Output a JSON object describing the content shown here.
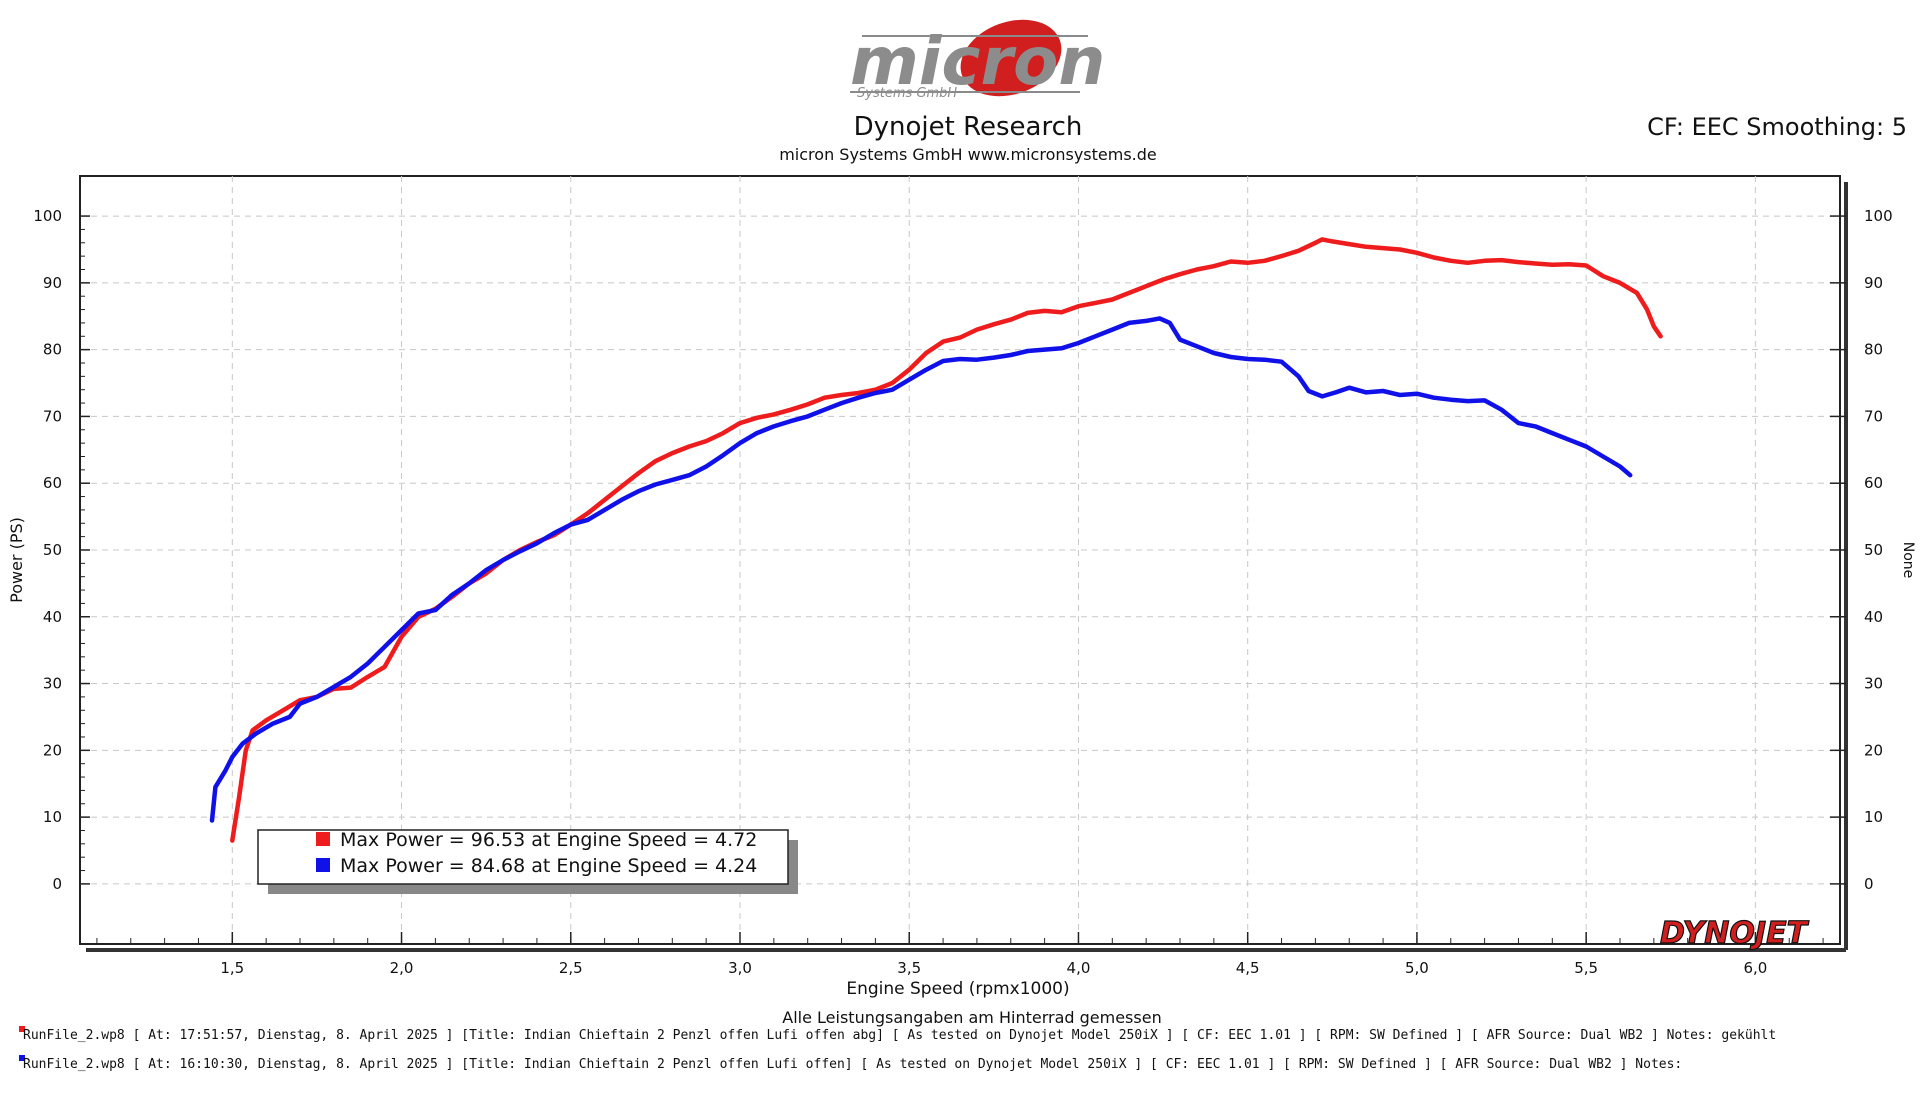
{
  "header": {
    "logo_text": "micron",
    "logo_sub": "Systems GmbH",
    "title": "Dynojet Research",
    "subtitle": "micron Systems GmbH  www.micronsystems.de",
    "cf_label": "CF: EEC Smoothing: 5",
    "brand": "DYNOJET"
  },
  "chart_data": {
    "type": "line",
    "xlabel": "Engine Speed (rpmx1000)",
    "ylabel": "Power (PS)",
    "y2label": "None",
    "xlim": [
      1.05,
      6.25
    ],
    "ylim": [
      -9,
      106
    ],
    "xticks": [
      "1,5",
      "2,0",
      "2,5",
      "3,0",
      "3,5",
      "4,0",
      "4,5",
      "5,0",
      "5,5",
      "6,0"
    ],
    "yticks": [
      "0",
      "10",
      "20",
      "30",
      "40",
      "50",
      "60",
      "70",
      "80",
      "90",
      "100"
    ],
    "grid": true,
    "series": [
      {
        "color": "#ee1c1c",
        "points": [
          [
            1.5,
            6.5
          ],
          [
            1.52,
            13
          ],
          [
            1.54,
            20
          ],
          [
            1.56,
            23
          ],
          [
            1.6,
            24.5
          ],
          [
            1.65,
            26
          ],
          [
            1.7,
            27.5
          ],
          [
            1.75,
            28
          ],
          [
            1.8,
            29.2
          ],
          [
            1.85,
            29.4
          ],
          [
            1.9,
            31
          ],
          [
            1.95,
            32.5
          ],
          [
            2.0,
            37
          ],
          [
            2.05,
            40
          ],
          [
            2.1,
            41.2
          ],
          [
            2.15,
            43
          ],
          [
            2.2,
            45
          ],
          [
            2.25,
            46.5
          ],
          [
            2.3,
            48.5
          ],
          [
            2.35,
            50
          ],
          [
            2.4,
            51.2
          ],
          [
            2.45,
            52.2
          ],
          [
            2.5,
            53.8
          ],
          [
            2.55,
            55.5
          ],
          [
            2.6,
            57.5
          ],
          [
            2.65,
            59.5
          ],
          [
            2.7,
            61.5
          ],
          [
            2.75,
            63.3
          ],
          [
            2.8,
            64.5
          ],
          [
            2.85,
            65.5
          ],
          [
            2.9,
            66.3
          ],
          [
            2.95,
            67.5
          ],
          [
            3.0,
            69
          ],
          [
            3.05,
            69.8
          ],
          [
            3.1,
            70.3
          ],
          [
            3.15,
            71
          ],
          [
            3.2,
            71.8
          ],
          [
            3.25,
            72.8
          ],
          [
            3.3,
            73.2
          ],
          [
            3.35,
            73.5
          ],
          [
            3.4,
            74
          ],
          [
            3.45,
            75
          ],
          [
            3.5,
            77
          ],
          [
            3.55,
            79.5
          ],
          [
            3.6,
            81.2
          ],
          [
            3.65,
            81.8
          ],
          [
            3.7,
            83
          ],
          [
            3.75,
            83.8
          ],
          [
            3.8,
            84.5
          ],
          [
            3.85,
            85.5
          ],
          [
            3.9,
            85.8
          ],
          [
            3.95,
            85.6
          ],
          [
            4.0,
            86.5
          ],
          [
            4.05,
            87
          ],
          [
            4.1,
            87.5
          ],
          [
            4.15,
            88.5
          ],
          [
            4.2,
            89.5
          ],
          [
            4.25,
            90.5
          ],
          [
            4.3,
            91.3
          ],
          [
            4.35,
            92
          ],
          [
            4.4,
            92.5
          ],
          [
            4.45,
            93.2
          ],
          [
            4.5,
            93
          ],
          [
            4.55,
            93.3
          ],
          [
            4.6,
            94
          ],
          [
            4.65,
            94.8
          ],
          [
            4.7,
            96
          ],
          [
            4.72,
            96.5
          ],
          [
            4.75,
            96.2
          ],
          [
            4.8,
            95.8
          ],
          [
            4.85,
            95.4
          ],
          [
            4.9,
            95.2
          ],
          [
            4.95,
            95
          ],
          [
            5.0,
            94.5
          ],
          [
            5.05,
            93.8
          ],
          [
            5.1,
            93.3
          ],
          [
            5.15,
            93
          ],
          [
            5.2,
            93.3
          ],
          [
            5.25,
            93.4
          ],
          [
            5.3,
            93.1
          ],
          [
            5.35,
            92.9
          ],
          [
            5.4,
            92.7
          ],
          [
            5.45,
            92.8
          ],
          [
            5.5,
            92.6
          ],
          [
            5.55,
            91
          ],
          [
            5.6,
            90
          ],
          [
            5.65,
            88.5
          ],
          [
            5.68,
            86
          ],
          [
            5.7,
            83.5
          ],
          [
            5.72,
            82
          ]
        ]
      },
      {
        "color": "#1010e8",
        "points": [
          [
            1.44,
            9.5
          ],
          [
            1.45,
            14.5
          ],
          [
            1.48,
            17
          ],
          [
            1.5,
            19
          ],
          [
            1.53,
            21
          ],
          [
            1.57,
            22.5
          ],
          [
            1.62,
            24
          ],
          [
            1.67,
            25
          ],
          [
            1.7,
            27
          ],
          [
            1.75,
            28
          ],
          [
            1.8,
            29.5
          ],
          [
            1.85,
            31
          ],
          [
            1.9,
            33
          ],
          [
            1.95,
            35.5
          ],
          [
            2.0,
            38
          ],
          [
            2.05,
            40.5
          ],
          [
            2.1,
            41
          ],
          [
            2.15,
            43.3
          ],
          [
            2.2,
            45
          ],
          [
            2.25,
            47
          ],
          [
            2.3,
            48.5
          ],
          [
            2.35,
            49.8
          ],
          [
            2.4,
            51
          ],
          [
            2.45,
            52.5
          ],
          [
            2.5,
            53.8
          ],
          [
            2.55,
            54.5
          ],
          [
            2.6,
            56
          ],
          [
            2.65,
            57.5
          ],
          [
            2.7,
            58.8
          ],
          [
            2.75,
            59.8
          ],
          [
            2.8,
            60.5
          ],
          [
            2.85,
            61.2
          ],
          [
            2.9,
            62.5
          ],
          [
            2.95,
            64.2
          ],
          [
            3.0,
            66
          ],
          [
            3.05,
            67.5
          ],
          [
            3.1,
            68.5
          ],
          [
            3.15,
            69.3
          ],
          [
            3.2,
            70
          ],
          [
            3.25,
            71
          ],
          [
            3.3,
            72
          ],
          [
            3.35,
            72.8
          ],
          [
            3.4,
            73.5
          ],
          [
            3.45,
            74
          ],
          [
            3.5,
            75.5
          ],
          [
            3.55,
            77
          ],
          [
            3.6,
            78.3
          ],
          [
            3.65,
            78.6
          ],
          [
            3.7,
            78.5
          ],
          [
            3.75,
            78.8
          ],
          [
            3.8,
            79.2
          ],
          [
            3.85,
            79.8
          ],
          [
            3.9,
            80
          ],
          [
            3.95,
            80.2
          ],
          [
            4.0,
            81
          ],
          [
            4.05,
            82
          ],
          [
            4.1,
            83
          ],
          [
            4.15,
            84
          ],
          [
            4.2,
            84.3
          ],
          [
            4.24,
            84.68
          ],
          [
            4.27,
            84
          ],
          [
            4.3,
            81.5
          ],
          [
            4.35,
            80.5
          ],
          [
            4.4,
            79.5
          ],
          [
            4.45,
            78.9
          ],
          [
            4.5,
            78.6
          ],
          [
            4.55,
            78.5
          ],
          [
            4.6,
            78.2
          ],
          [
            4.65,
            76
          ],
          [
            4.68,
            73.8
          ],
          [
            4.72,
            73
          ],
          [
            4.76,
            73.6
          ],
          [
            4.8,
            74.3
          ],
          [
            4.85,
            73.6
          ],
          [
            4.9,
            73.8
          ],
          [
            4.95,
            73.2
          ],
          [
            5.0,
            73.4
          ],
          [
            5.05,
            72.8
          ],
          [
            5.1,
            72.5
          ],
          [
            5.15,
            72.3
          ],
          [
            5.2,
            72.4
          ],
          [
            5.25,
            71
          ],
          [
            5.3,
            69
          ],
          [
            5.35,
            68.5
          ],
          [
            5.4,
            67.5
          ],
          [
            5.45,
            66.5
          ],
          [
            5.5,
            65.5
          ],
          [
            5.55,
            64
          ],
          [
            5.6,
            62.5
          ],
          [
            5.63,
            61.2
          ]
        ]
      }
    ],
    "legend": [
      "Max Power = 96.53 at Engine Speed = 4.72",
      "Max Power = 84.68 at Engine Speed = 4.24"
    ]
  },
  "footer": {
    "note": "Alle Leistungsangaben am Hinterrad gemessen",
    "runs": [
      "RunFile_2.wp8 [ At: 17:51:57, Dienstag, 8. April 2025 ] [Title: Indian Chieftain 2 Penzl offen Lufi offen abg]   [ As tested on Dynojet Model 250iX ] [ CF: EEC 1.01 ] [ RPM: SW Defined ] [ AFR Source: Dual WB2 ] Notes: gekühlt",
      "RunFile_2.wp8 [ At: 16:10:30, Dienstag, 8. April 2025 ] [Title: Indian Chieftain 2 Penzl offen Lufi offen]   [ As tested on Dynojet Model 250iX ] [ CF: EEC 1.01 ] [ RPM: SW Defined ] [ AFR Source: Dual WB2 ] Notes:"
    ]
  }
}
